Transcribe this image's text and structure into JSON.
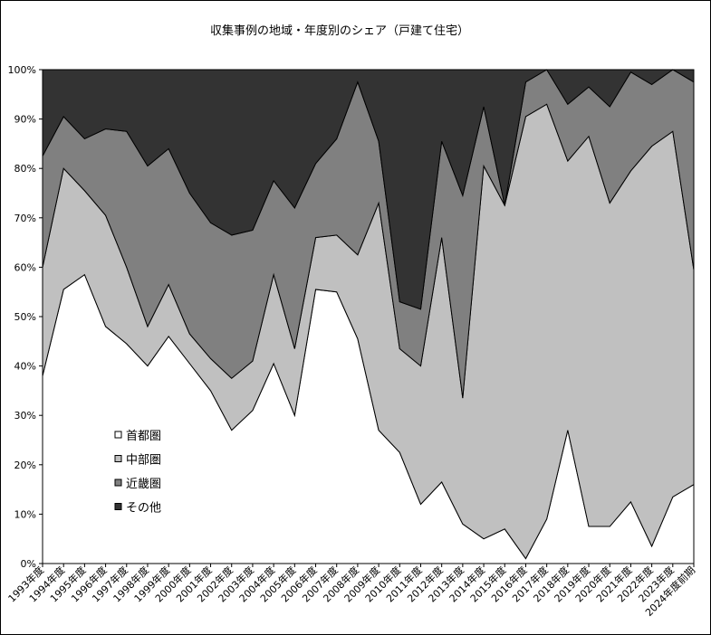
{
  "chart_data": {
    "type": "area",
    "stacked": true,
    "title": "収集事例の地域・年度別のシェア（戸建て住宅）",
    "xlabel": "",
    "ylabel": "",
    "ylim": [
      0,
      100
    ],
    "y_ticks": [
      "0%",
      "10%",
      "20%",
      "30%",
      "40%",
      "50%",
      "60%",
      "70%",
      "80%",
      "90%",
      "100%"
    ],
    "categories": [
      "1993年度",
      "1994年度",
      "1995年度",
      "1996年度",
      "1997年度",
      "1998年度",
      "1999年度",
      "2000年度",
      "2001年度",
      "2002年度",
      "2003年度",
      "2004年度",
      "2005年度",
      "2006年度",
      "2007年度",
      "2008年度",
      "2009年度",
      "2010年度",
      "2011年度",
      "2012年度",
      "2013年度",
      "2014年度",
      "2015年度",
      "2016年度",
      "2017年度",
      "2018年度",
      "2019年度",
      "2020年度",
      "2021年度",
      "2022年度",
      "2023年度",
      "2024年度前期"
    ],
    "series": [
      {
        "name": "首都圏",
        "color": "#ffffff",
        "values": [
          38,
          55.5,
          58.5,
          48,
          44.5,
          40,
          46,
          40.5,
          35,
          27,
          31,
          40.5,
          30,
          55.5,
          55,
          45.5,
          27,
          22.5,
          12,
          16.5,
          8,
          5,
          7,
          1,
          9,
          27,
          7.5,
          7.5,
          12.5,
          3.5,
          13.5,
          16
        ]
      },
      {
        "name": "中部圏",
        "color": "#c0c0c0",
        "values": [
          22,
          24.5,
          17,
          22.5,
          15.5,
          8,
          10.5,
          6,
          6.5,
          10.5,
          10,
          18,
          13.5,
          10.5,
          11.5,
          17,
          46,
          21,
          28,
          49.5,
          25.5,
          75.5,
          65.5,
          89.5,
          84,
          54.5,
          79,
          65.5,
          67,
          81,
          74,
          43.5
        ]
      },
      {
        "name": "近畿圏",
        "color": "#808080",
        "values": [
          22.5,
          10.5,
          10.5,
          17.5,
          27.5,
          32.5,
          27.5,
          28.5,
          27.5,
          29,
          26.5,
          19,
          28.5,
          15,
          19.5,
          35,
          12.5,
          9.5,
          11.5,
          19.5,
          41,
          12,
          0,
          7,
          7,
          11.5,
          10,
          19.5,
          20,
          12.5,
          12.5,
          38
        ]
      },
      {
        "name": "その他",
        "color": "#333333",
        "values": [
          17.5,
          9.5,
          14,
          12,
          12.5,
          19.5,
          16,
          25,
          31,
          33.5,
          32.5,
          22.5,
          28,
          19,
          14,
          2.5,
          14.5,
          47,
          48.5,
          14.5,
          25.5,
          7.5,
          27.5,
          2.5,
          0,
          7,
          3.5,
          7.5,
          0.5,
          3,
          0,
          2.5
        ]
      }
    ],
    "legend": {
      "position": "left-inside",
      "order": [
        "首都圏",
        "中部圏",
        "近畿圏",
        "その他"
      ]
    },
    "grid": false
  }
}
